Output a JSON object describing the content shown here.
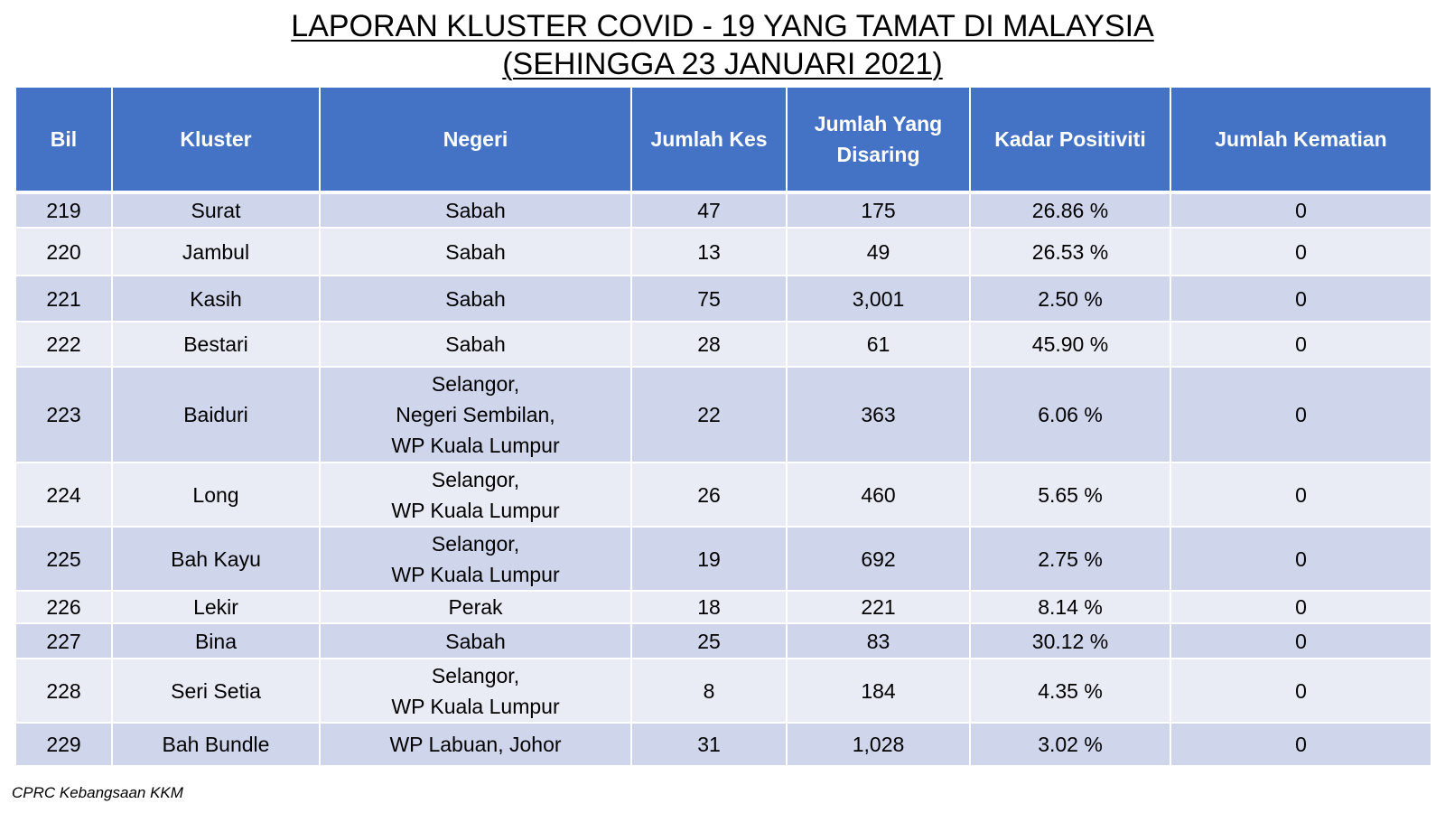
{
  "title": {
    "line1": "LAPORAN KLUSTER COVID - 19 YANG TAMAT DI MALAYSIA",
    "line2": "(SEHINGGA 23 JANUARI 2021)"
  },
  "table": {
    "headers": [
      "Bil",
      "Kluster",
      "Negeri",
      "Jumlah Kes",
      "Jumlah Yang Disaring",
      "Kadar Positiviti",
      "Jumlah Kematian"
    ],
    "rows": [
      {
        "bil": "219",
        "kluster": "Surat",
        "negeri": [
          "Sabah"
        ],
        "kes": "47",
        "disaring": "175",
        "positiviti": "26.86 %",
        "kematian": "0"
      },
      {
        "bil": "220",
        "kluster": "Jambul",
        "negeri": [
          "Sabah"
        ],
        "kes": "13",
        "disaring": "49",
        "positiviti": "26.53 %",
        "kematian": "0"
      },
      {
        "bil": "221",
        "kluster": "Kasih",
        "negeri": [
          "Sabah"
        ],
        "kes": "75",
        "disaring": "3,001",
        "positiviti": "2.50 %",
        "kematian": "0"
      },
      {
        "bil": "222",
        "kluster": "Bestari",
        "negeri": [
          "Sabah"
        ],
        "kes": "28",
        "disaring": "61",
        "positiviti": "45.90 %",
        "kematian": "0"
      },
      {
        "bil": "223",
        "kluster": "Baiduri",
        "negeri": [
          "Selangor,",
          "Negeri Sembilan,",
          "WP Kuala Lumpur"
        ],
        "kes": "22",
        "disaring": "363",
        "positiviti": "6.06 %",
        "kematian": "0"
      },
      {
        "bil": "224",
        "kluster": "Long",
        "negeri": [
          "Selangor,",
          "WP Kuala Lumpur"
        ],
        "kes": "26",
        "disaring": "460",
        "positiviti": "5.65 %",
        "kematian": "0"
      },
      {
        "bil": "225",
        "kluster": "Bah Kayu",
        "negeri": [
          "Selangor,",
          "WP Kuala Lumpur"
        ],
        "kes": "19",
        "disaring": "692",
        "positiviti": "2.75 %",
        "kematian": "0"
      },
      {
        "bil": "226",
        "kluster": "Lekir",
        "negeri": [
          "Perak"
        ],
        "kes": "18",
        "disaring": "221",
        "positiviti": "8.14 %",
        "kematian": "0"
      },
      {
        "bil": "227",
        "kluster": "Bina",
        "negeri": [
          "Sabah"
        ],
        "kes": "25",
        "disaring": "83",
        "positiviti": "30.12 %",
        "kematian": "0"
      },
      {
        "bil": "228",
        "kluster": "Seri Setia",
        "negeri": [
          "Selangor,",
          "WP Kuala Lumpur"
        ],
        "kes": "8",
        "disaring": "184",
        "positiviti": "4.35 %",
        "kematian": "0"
      },
      {
        "bil": "229",
        "kluster": "Bah Bundle",
        "negeri": [
          "WP Labuan, Johor"
        ],
        "kes": "31",
        "disaring": "1,028",
        "positiviti": "3.02 %",
        "kematian": "0"
      }
    ]
  },
  "footer": "CPRC Kebangsaan KKM",
  "colors": {
    "header_bg": "#4472c4",
    "row_odd": "#cfd5ea",
    "row_even": "#e9ebf5"
  }
}
